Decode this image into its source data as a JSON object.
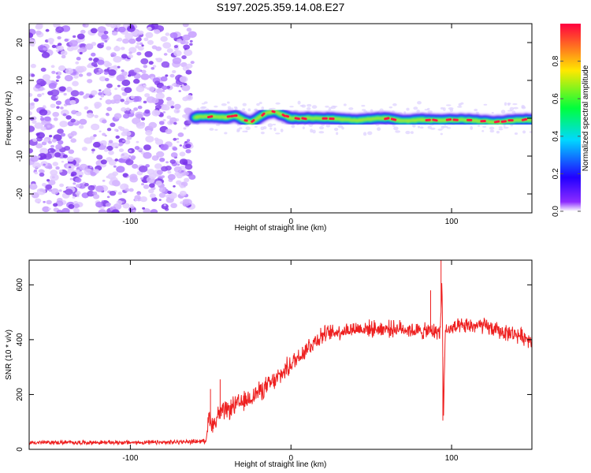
{
  "title": "S197.2025.359.14.08.E27",
  "chart_data": [
    {
      "type": "heatmap",
      "xlabel": "Height of straight line (km)",
      "ylabel": "Frequency (Hz)",
      "xlim": [
        -163,
        150
      ],
      "ylim": [
        -25,
        25
      ],
      "xticks": [
        -100,
        0,
        100
      ],
      "xtick_labels": [
        "-100",
        "0",
        "100"
      ],
      "yticks": [
        -20,
        -10,
        0,
        10,
        20
      ],
      "ytick_labels": [
        "-20",
        "-10",
        "0",
        "10",
        "20"
      ],
      "noise_region_end_km": -60,
      "signal_track": {
        "x": [
          -60,
          -50,
          -40,
          -35,
          -30,
          -25,
          -20,
          -15,
          -10,
          -5,
          0,
          10,
          20,
          30,
          40,
          50,
          60,
          70,
          80,
          90,
          100,
          110,
          120,
          130,
          140,
          150
        ],
        "y": [
          0.3,
          0.5,
          0.2,
          0.8,
          -0.3,
          -1.2,
          0.2,
          1.5,
          1.8,
          0.8,
          0.0,
          0.0,
          0.0,
          -0.2,
          -0.6,
          -0.2,
          0.0,
          -0.8,
          -0.4,
          -0.6,
          -0.4,
          -0.5,
          -0.8,
          -1.0,
          -0.5,
          -0.4
        ]
      },
      "colorbar": {
        "label": "Normalized spectral amplitude",
        "range": [
          0.0,
          1.0
        ],
        "ticks": [
          0.0,
          0.2,
          0.4,
          0.6,
          0.8
        ],
        "tick_labels": [
          "0.0",
          "0.2",
          "0.4",
          "0.6",
          "0.8"
        ],
        "colors": [
          "#ffffff",
          "#8c2cff",
          "#2200ff",
          "#00d8ff",
          "#00ff3c",
          "#ffe800",
          "#ff0040"
        ]
      }
    },
    {
      "type": "line",
      "xlabel": "Height of straight line (km)",
      "ylabel": "SNR (10 * v/v)",
      "xlim": [
        -163,
        150
      ],
      "ylim": [
        0,
        690
      ],
      "xticks": [
        -100,
        0,
        100
      ],
      "xtick_labels": [
        "-100",
        "0",
        "100"
      ],
      "yticks": [
        0,
        200,
        400,
        600
      ],
      "ytick_labels": [
        "0",
        "200",
        "400",
        "600"
      ],
      "color": "#ee2020",
      "series": [
        {
          "name": "SNR",
          "x": [
            -163,
            -120,
            -80,
            -53,
            -51,
            -48,
            -45,
            -40,
            -35,
            -30,
            -20,
            -10,
            0,
            10,
            20,
            30,
            40,
            50,
            60,
            70,
            80,
            88,
            93,
            94,
            95,
            96,
            97,
            100,
            110,
            120,
            130,
            140,
            150
          ],
          "y": [
            25,
            25,
            25,
            30,
            120,
            90,
            130,
            140,
            160,
            170,
            210,
            250,
            310,
            370,
            420,
            430,
            440,
            440,
            440,
            440,
            430,
            430,
            430,
            620,
            110,
            440,
            430,
            440,
            450,
            450,
            430,
            420,
            400
          ],
          "spikes": [
            {
              "x": -50,
              "y": 220
            },
            {
              "x": -44,
              "y": 255
            },
            {
              "x": 87,
              "y": 580
            },
            {
              "x": 93.5,
              "y": 690
            },
            {
              "x": 94.5,
              "y": 105
            }
          ]
        }
      ]
    }
  ]
}
